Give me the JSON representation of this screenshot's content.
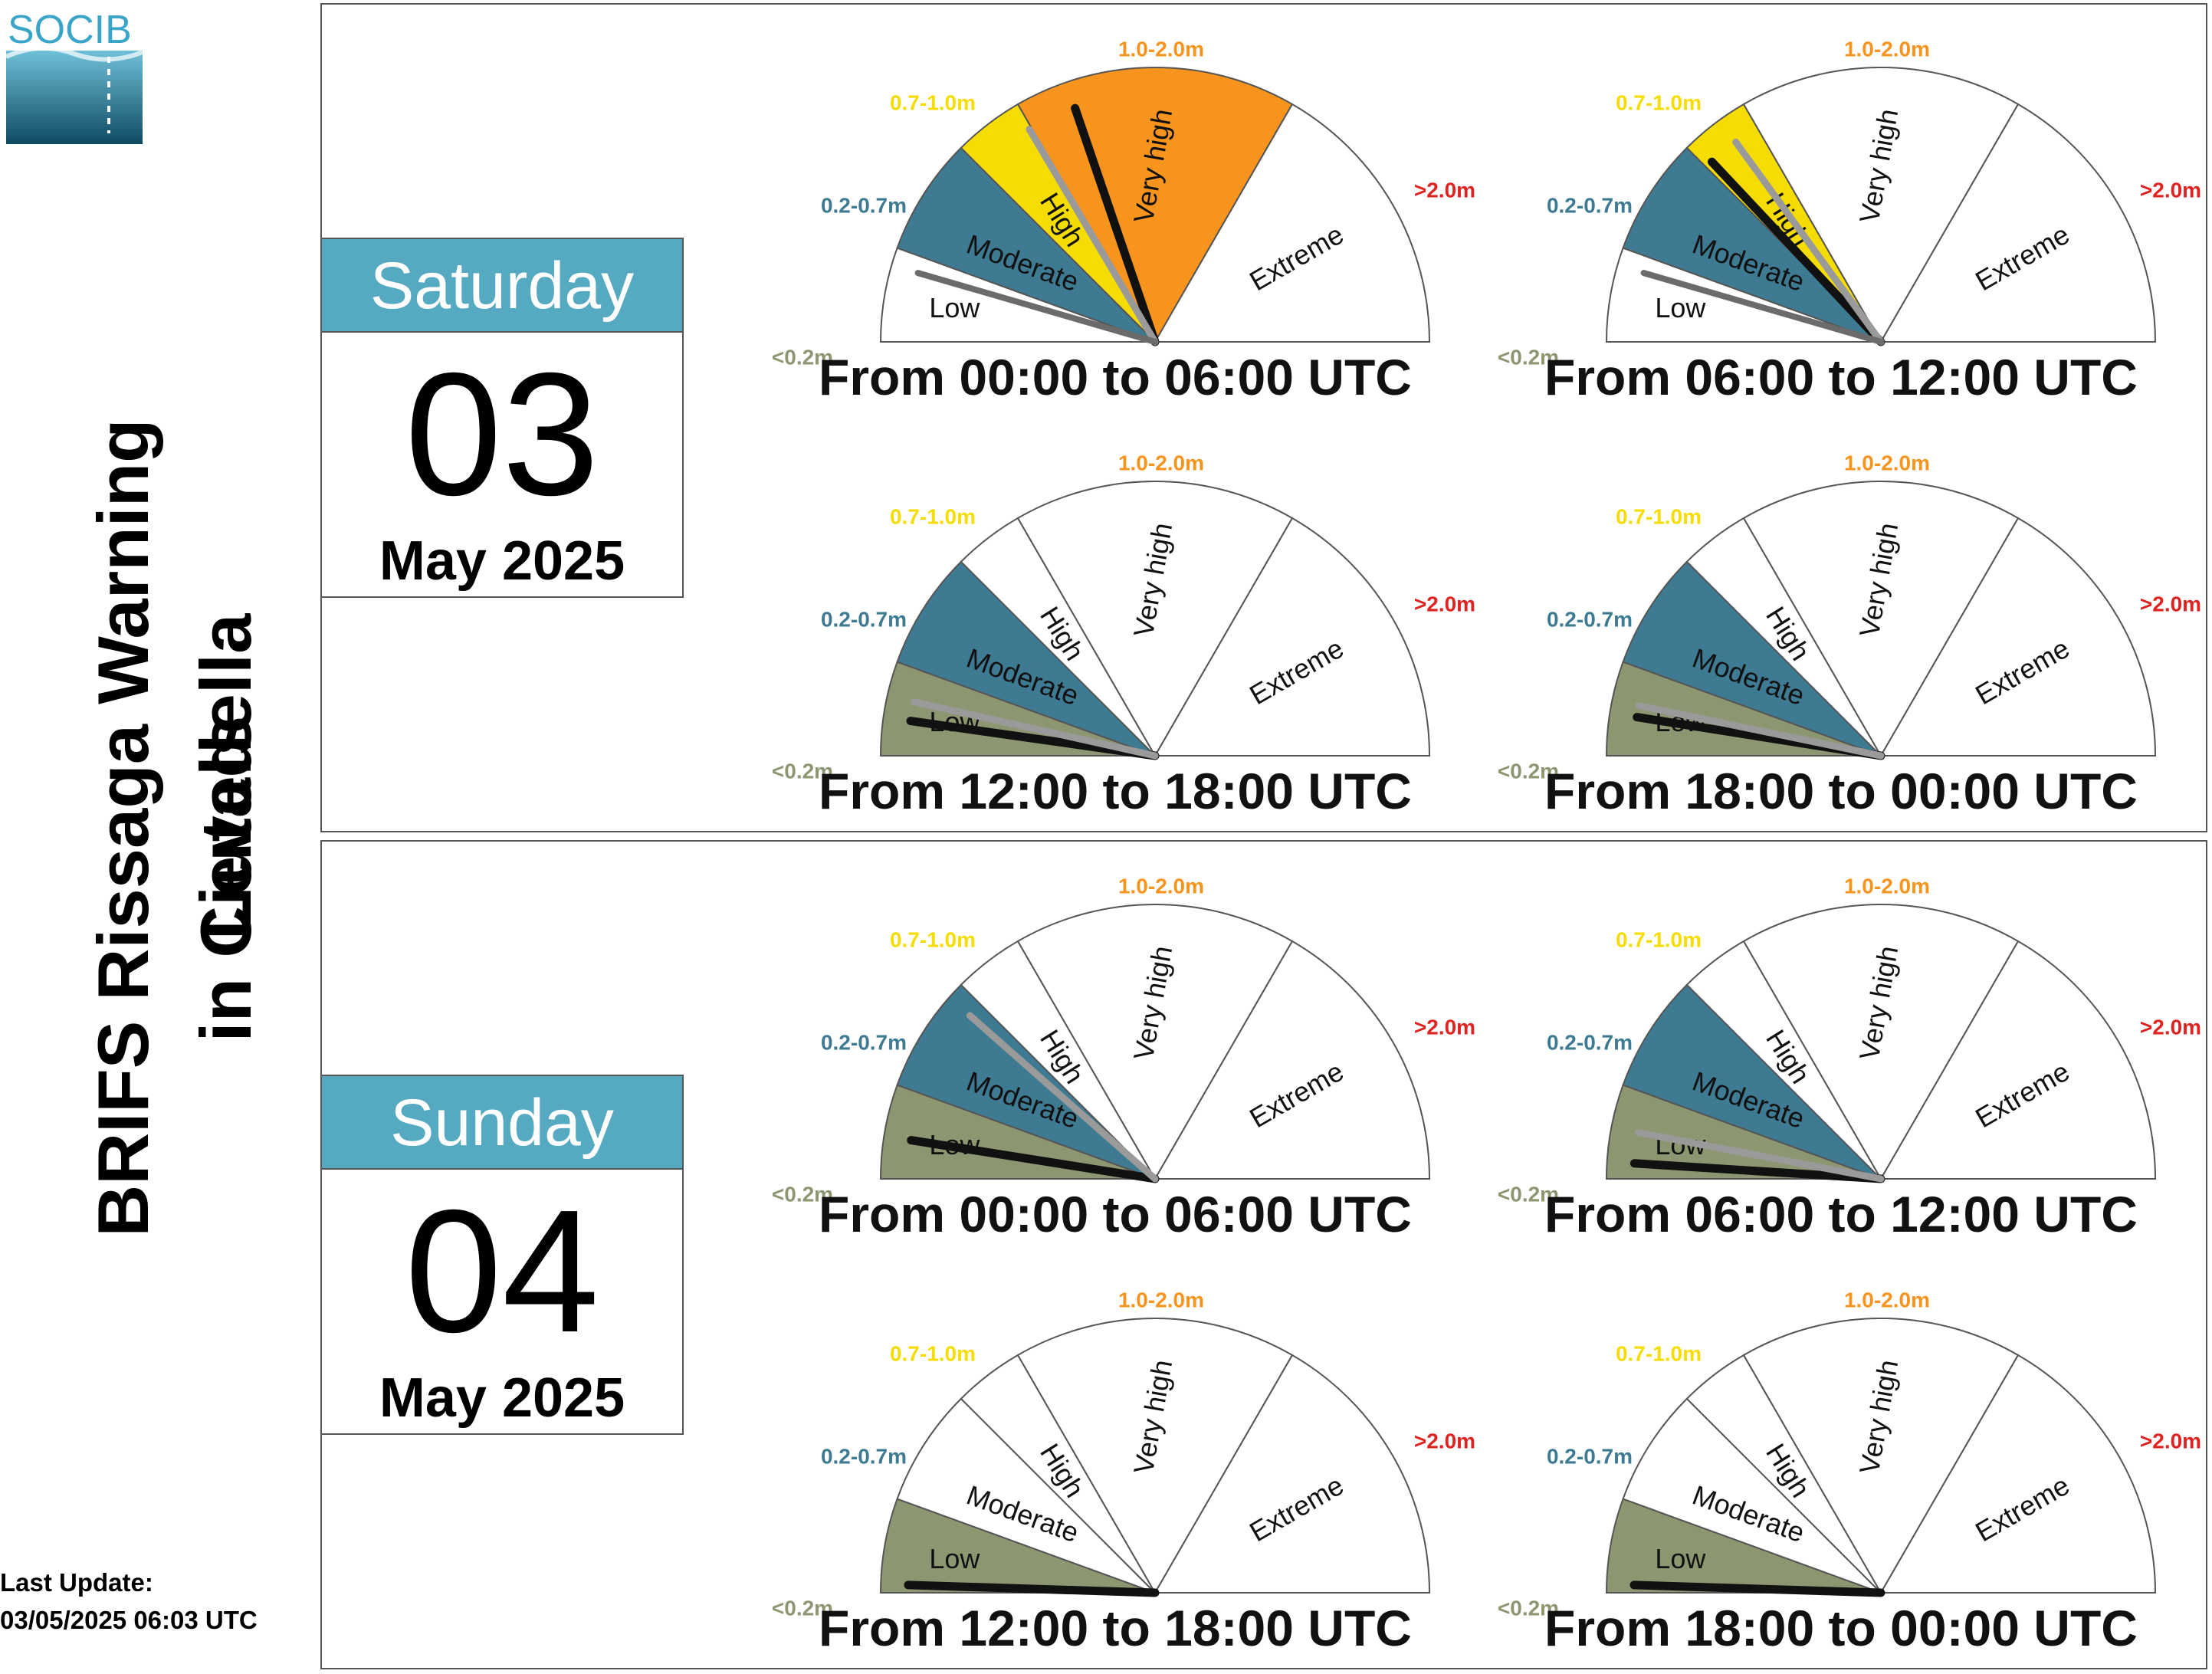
{
  "logo": {
    "text": "SOCIB"
  },
  "title": {
    "line1": "BRIFS Rissaga Warning Levels",
    "line2": "in Ciutadella"
  },
  "last_update": {
    "label": "Last Update:",
    "value": "03/05/2025 06:03 UTC"
  },
  "legend": {
    "thresholds": [
      "<0.2m",
      "0.2-0.7m",
      "0.7-1.0m",
      "1.0-2.0m",
      ">2.0m"
    ],
    "levels": [
      "Low",
      "Moderate",
      "High",
      "Very high",
      "Extreme"
    ]
  },
  "colors": {
    "low": "#8c9772",
    "moderate": "#3e7a91",
    "high": "#f5dd03",
    "very_high": "#f6941e",
    "extreme": "#e02321",
    "t_low": "#8c9772",
    "t_moderate": "#3e7a91",
    "t_high": "#f5dd03",
    "t_very_high": "#f6941e",
    "t_extreme": "#e02321",
    "calendar_header": "#55a9c0"
  },
  "days": [
    {
      "weekday": "Saturday",
      "day": "03",
      "month_year": "May 2025",
      "periods": [
        {
          "label": "From 00:00 to 06:00 UTC",
          "filled": [
            "Moderate",
            "High",
            "Very high"
          ],
          "needles": [
            0.395,
            0.33,
            0.09
          ]
        },
        {
          "label": "From 06:00 to 12:00 UTC",
          "filled": [
            "Moderate",
            "High"
          ],
          "needles": [
            0.26,
            0.3,
            0.09
          ]
        },
        {
          "label": "From 12:00 to 18:00 UTC",
          "filled": [
            "Low",
            "Moderate"
          ],
          "needles": [
            0.045,
            0.07
          ]
        },
        {
          "label": "From 18:00 to 00:00 UTC",
          "filled": [
            "Low",
            "Moderate"
          ],
          "needles": [
            0.05,
            0.065
          ]
        }
      ]
    },
    {
      "weekday": "Sunday",
      "day": "04",
      "month_year": "May 2025",
      "periods": [
        {
          "label": "From 00:00 to 06:00 UTC",
          "filled": [
            "Low",
            "Moderate"
          ],
          "needles": [
            0.05,
            0.23
          ]
        },
        {
          "label": "From 06:00 to 12:00 UTC",
          "filled": [
            "Low",
            "Moderate"
          ],
          "needles": [
            0.02,
            0.06
          ]
        },
        {
          "label": "From 12:00 to 18:00 UTC",
          "filled": [
            "Low"
          ],
          "needles": [
            0.01
          ]
        },
        {
          "label": "From 18:00 to 00:00 UTC",
          "filled": [
            "Low"
          ],
          "needles": [
            0.01
          ]
        }
      ]
    }
  ]
}
